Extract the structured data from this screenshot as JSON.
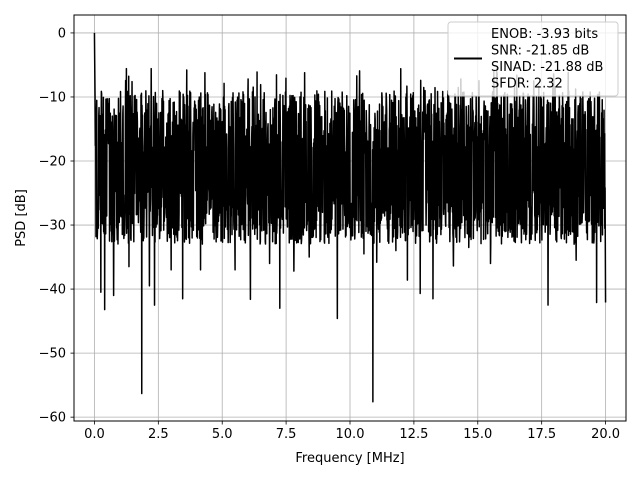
{
  "chart_data": {
    "type": "line",
    "title": "",
    "xlabel": "Frequency [MHz]",
    "ylabel": "PSD [dB]",
    "xlim": [
      -0.8,
      20.8
    ],
    "ylim": [
      -60.6,
      2.8
    ],
    "xticks": [
      0.0,
      2.5,
      5.0,
      7.5,
      10.0,
      12.5,
      15.0,
      17.5,
      20.0
    ],
    "xtick_labels": [
      "0.0",
      "2.5",
      "5.0",
      "7.5",
      "10.0",
      "12.5",
      "15.0",
      "17.5",
      "20.0"
    ],
    "yticks": [
      0,
      -10,
      -20,
      -30,
      -40,
      -50,
      -60
    ],
    "ytick_labels": [
      "0",
      "−10",
      "−20",
      "−30",
      "−40",
      "−50",
      "−60"
    ],
    "grid": true,
    "legend_position": "top-right",
    "legend_lines": [
      "ENOB: -3.93 bits",
      "SNR: -21.85 dB",
      "SINAD: -21.88 dB",
      "SFDR: 2.32"
    ],
    "series": [
      {
        "color": "#000000",
        "x_range": [
          0,
          20
        ],
        "points": 2000,
        "start_value": 0,
        "initial_decay": [
          0,
          -4.5,
          -8.5,
          -12.5
        ],
        "typical_band": [
          -33,
          -9
        ],
        "peak_values": [
          -5.5,
          -6.2,
          -7.0,
          -7.8
        ],
        "dips": [
          {
            "x": 0.15,
            "y": -30.5
          },
          {
            "x": 0.25,
            "y": -40.5
          },
          {
            "x": 0.4,
            "y": -43.2
          },
          {
            "x": 0.75,
            "y": -41.0
          },
          {
            "x": 1.35,
            "y": -36.5
          },
          {
            "x": 1.85,
            "y": -56.3
          },
          {
            "x": 2.15,
            "y": -39.5
          },
          {
            "x": 2.35,
            "y": -42.5
          },
          {
            "x": 3.0,
            "y": -37.0
          },
          {
            "x": 3.45,
            "y": -41.5
          },
          {
            "x": 4.15,
            "y": -37.0
          },
          {
            "x": 4.95,
            "y": -32.5
          },
          {
            "x": 5.5,
            "y": -37.0
          },
          {
            "x": 6.1,
            "y": -41.6
          },
          {
            "x": 6.85,
            "y": -36.0
          },
          {
            "x": 7.25,
            "y": -43.0
          },
          {
            "x": 7.8,
            "y": -37.2
          },
          {
            "x": 8.4,
            "y": -35.0
          },
          {
            "x": 9.5,
            "y": -44.6
          },
          {
            "x": 10.05,
            "y": -31.0
          },
          {
            "x": 10.55,
            "y": -34.5
          },
          {
            "x": 10.9,
            "y": -57.6
          },
          {
            "x": 11.05,
            "y": -35.8
          },
          {
            "x": 11.8,
            "y": -34.0
          },
          {
            "x": 12.25,
            "y": -38.6
          },
          {
            "x": 12.75,
            "y": -40.7
          },
          {
            "x": 13.25,
            "y": -41.5
          },
          {
            "x": 14.05,
            "y": -36.4
          },
          {
            "x": 14.65,
            "y": -33.5
          },
          {
            "x": 15.5,
            "y": -36.0
          },
          {
            "x": 16.4,
            "y": -31.8
          },
          {
            "x": 17.75,
            "y": -42.5
          },
          {
            "x": 18.85,
            "y": -35.5
          },
          {
            "x": 19.65,
            "y": -42.1
          },
          {
            "x": 20.0,
            "y": -42.1
          }
        ]
      }
    ]
  }
}
